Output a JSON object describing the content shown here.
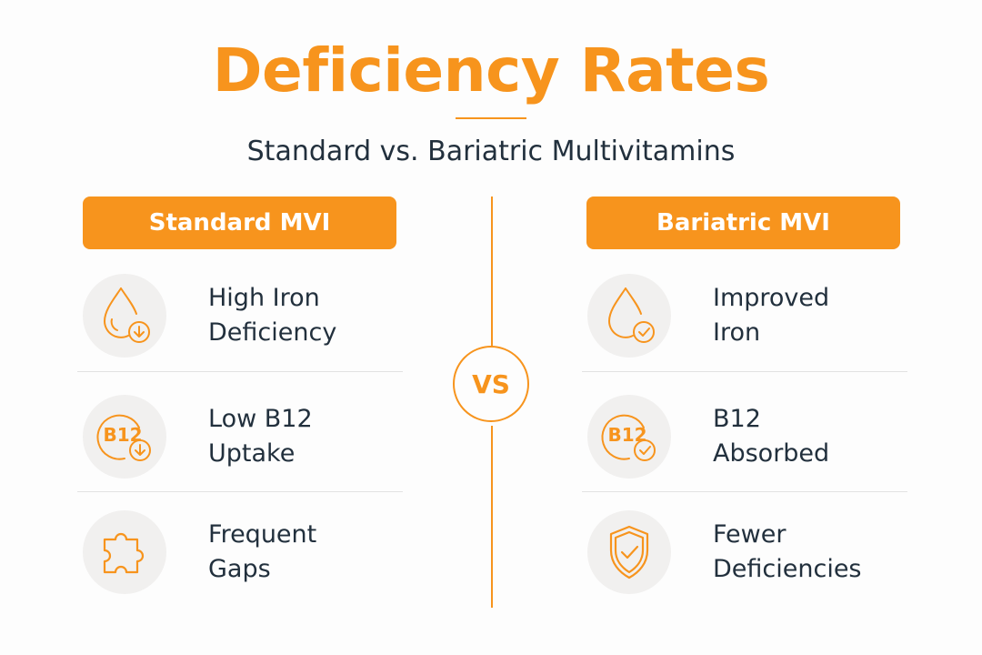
{
  "title": "Deficiency Rates",
  "subtitle": "Standard vs. Bariatric Multivitamins",
  "vs_label": "VS",
  "colors": {
    "accent": "#f7941d",
    "text": "#22303d",
    "icon_bg": "#f1f0ef"
  },
  "left": {
    "header": "Standard MVI",
    "items": [
      {
        "label": "High Iron\nDeficiency",
        "icon": "drop-down-arrow-icon"
      },
      {
        "label": "Low B12\nUptake",
        "icon": "b12-down-arrow-icon",
        "icon_text": "B12"
      },
      {
        "label": "Frequent\nGaps",
        "icon": "puzzle-icon"
      }
    ]
  },
  "right": {
    "header": "Bariatric MVI",
    "items": [
      {
        "label": "Improved\nIron",
        "icon": "drop-check-icon"
      },
      {
        "label": "B12\nAbsorbed",
        "icon": "b12-check-icon",
        "icon_text": "B12"
      },
      {
        "label": "Fewer\nDeficiencies",
        "icon": "shield-check-icon"
      }
    ]
  }
}
